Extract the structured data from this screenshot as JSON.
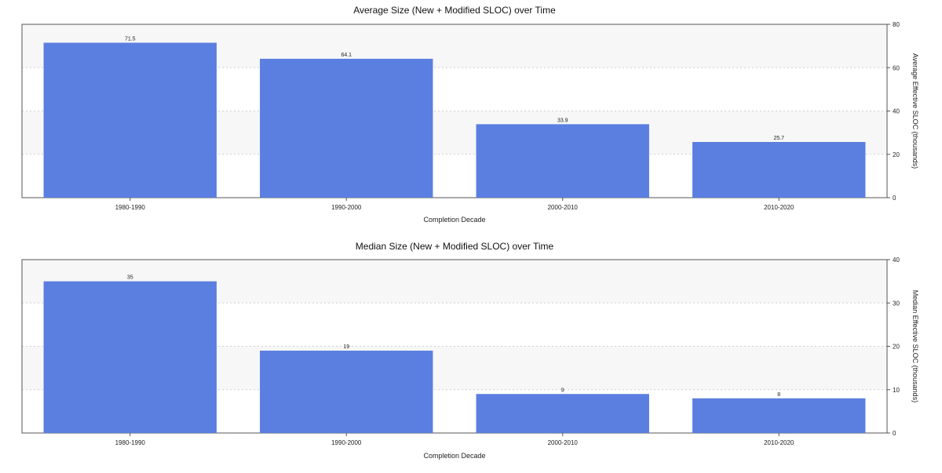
{
  "chart_data": [
    {
      "type": "bar",
      "title": "Average Size (New + Modified SLOC) over Time",
      "xlabel": "Completion Decade",
      "ylabel": "Average Effective SLOC (thousands)",
      "categories": [
        "1980-1990",
        "1990-2000",
        "2000-2010",
        "2010-2020"
      ],
      "values": [
        71.5,
        64.1,
        33.9,
        25.7
      ],
      "value_labels": [
        "71.5",
        "64.1",
        "33.9",
        "25.7"
      ],
      "ylim": [
        0,
        80
      ],
      "yticks": [
        0,
        20,
        40,
        60,
        80
      ],
      "y_axis_side": "right",
      "grid": "horizontal dashed",
      "bar_color": "#5b7fe0",
      "band_color": "#f7f7f7"
    },
    {
      "type": "bar",
      "title": "Median Size (New + Modified SLOC) over Time",
      "xlabel": "Completion Decade",
      "ylabel": "Median Effective SLOC (thousands)",
      "categories": [
        "1980-1990",
        "1990-2000",
        "2000-2010",
        "2010-2020"
      ],
      "values": [
        35,
        19,
        9,
        8
      ],
      "value_labels": [
        "35",
        "19",
        "9",
        "8"
      ],
      "ylim": [
        0,
        40
      ],
      "yticks": [
        0,
        10,
        20,
        30,
        40
      ],
      "y_axis_side": "right",
      "grid": "horizontal dashed",
      "bar_color": "#5b7fe0",
      "band_color": "#f7f7f7"
    }
  ]
}
